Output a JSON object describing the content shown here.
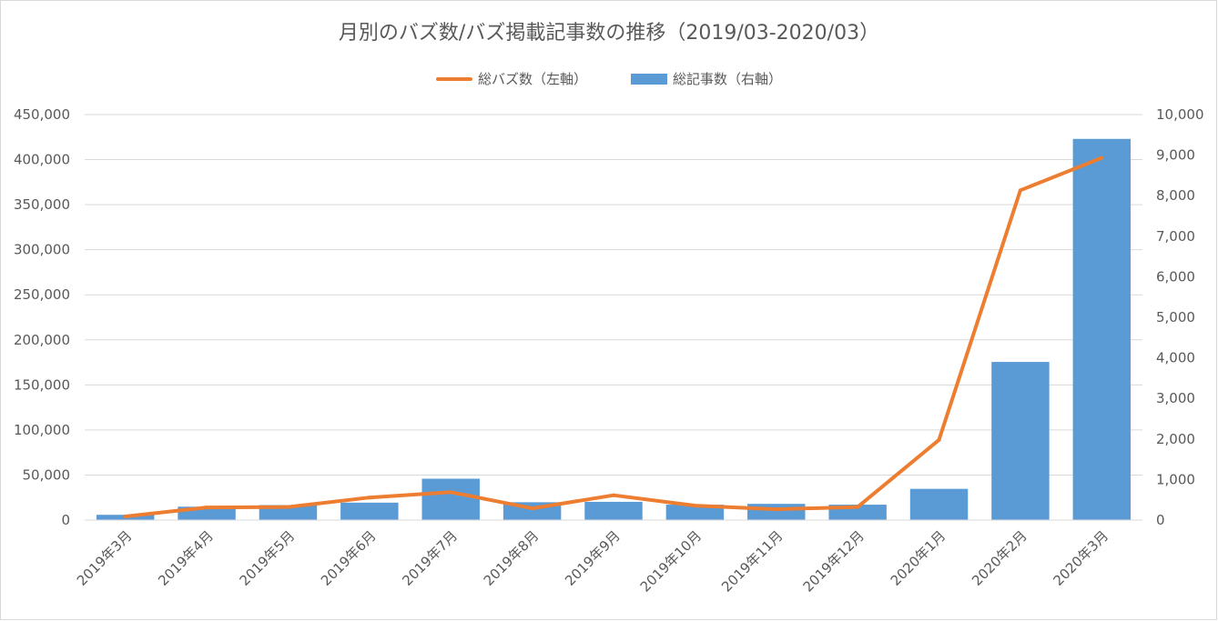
{
  "chart_data": {
    "type": "bar",
    "title": "月別のバズ数/バズ掲載記事数の推移（2019/03-2020/03）",
    "categories": [
      "2019年3月",
      "2019年4月",
      "2019年5月",
      "2019年6月",
      "2019年7月",
      "2019年8月",
      "2019年9月",
      "2019年10月",
      "2019年11月",
      "2019年12月",
      "2020年1月",
      "2020年2月",
      "2020年3月"
    ],
    "series": [
      {
        "name": "総バズ数（左軸）",
        "type": "line",
        "axis": "left",
        "values": [
          4000,
          14000,
          14500,
          25000,
          31000,
          13000,
          27500,
          16000,
          12000,
          14500,
          89000,
          366000,
          402000
        ]
      },
      {
        "name": "総記事数（右軸）",
        "type": "bar",
        "axis": "right",
        "values": [
          130,
          330,
          370,
          430,
          1020,
          440,
          450,
          380,
          400,
          380,
          770,
          3900,
          9400
        ]
      }
    ],
    "y_left": {
      "min": 0,
      "max": 450000,
      "step": 50000,
      "tick_labels": [
        "0",
        "50,000",
        "100,000",
        "150,000",
        "200,000",
        "250,000",
        "300,000",
        "350,000",
        "400,000",
        "450,000"
      ]
    },
    "y_right": {
      "min": 0,
      "max": 10000,
      "step": 1000,
      "tick_labels": [
        "0",
        "1,000",
        "2,000",
        "3,000",
        "4,000",
        "5,000",
        "6,000",
        "7,000",
        "8,000",
        "9,000",
        "10,000"
      ]
    },
    "grid": true,
    "legend_position": "top-center",
    "colors": {
      "line": "#ED7D31",
      "bar": "#5B9BD5",
      "grid": "#D9D9D9",
      "text": "#595959"
    }
  }
}
